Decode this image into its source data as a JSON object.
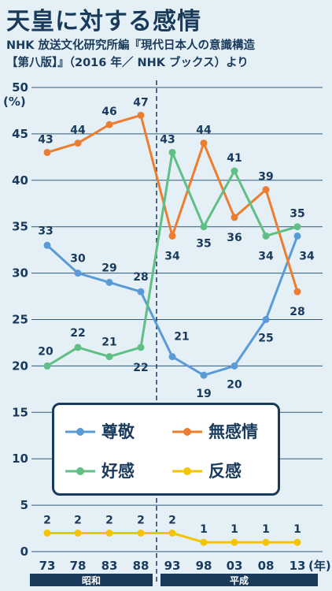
{
  "title": "天皇に対する感情",
  "subtitle_line1": "NHK 放送文化研究所編『現代日本人の意識構造",
  "subtitle_line2": "【第八版】』（2016 年／ NHK ブックス）より",
  "chart_data": {
    "type": "line",
    "x": [
      "73",
      "78",
      "83",
      "88",
      "93",
      "98",
      "03",
      "08",
      "13"
    ],
    "x_unit": "(年)",
    "y_unit": "(%)",
    "ylim": [
      0,
      50
    ],
    "yticks": [
      0,
      5,
      10,
      15,
      20,
      25,
      30,
      35,
      40,
      45,
      50
    ],
    "grid": true,
    "eras": [
      {
        "label": "昭和",
        "from": "73",
        "to": "88"
      },
      {
        "label": "平成",
        "from": "93",
        "to": "13"
      }
    ],
    "series": [
      {
        "name": "尊敬",
        "color": "#5b9bd5",
        "values": [
          33,
          30,
          29,
          28,
          21,
          19,
          20,
          25,
          34
        ]
      },
      {
        "name": "無感情",
        "color": "#ed7d31",
        "values": [
          43,
          44,
          46,
          47,
          34,
          44,
          36,
          39,
          28
        ]
      },
      {
        "name": "好感",
        "color": "#5fbf84",
        "values": [
          20,
          22,
          21,
          22,
          43,
          35,
          41,
          34,
          35
        ]
      },
      {
        "name": "反感",
        "color": "#f5c400",
        "values": [
          2,
          2,
          2,
          2,
          2,
          1,
          1,
          1,
          1
        ]
      }
    ],
    "legend_position": "center"
  }
}
